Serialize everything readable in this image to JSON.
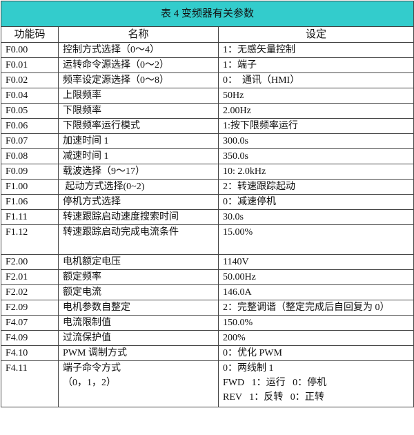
{
  "title": "表 4  变频器有关参数",
  "headers": [
    "功能码",
    "名称",
    "设定"
  ],
  "rows": [
    {
      "code": "F0.00",
      "name": "控制方式选择（0～4）",
      "setting": "1：无感矢量控制"
    },
    {
      "code": "F0.01",
      "name": "运转命令源选择（0～2）",
      "setting": "1：端子"
    },
    {
      "code": "F0.02",
      "name": "频率设定源选择（0～8）",
      "setting": "0：  通讯（HMI）"
    },
    {
      "code": "F0.04",
      "name": "上限频率",
      "setting": "50Hz"
    },
    {
      "code": "F0.05",
      "name": "下限频率",
      "setting": "2.00Hz"
    },
    {
      "code": "F0.06",
      "name": "下限频率运行模式",
      "setting": "1:按下限频率运行"
    },
    {
      "code": "F0.07",
      "name": "加速时间 1",
      "setting": "300.0s"
    },
    {
      "code": "F0.08",
      "name": "减速时间 1",
      "setting": "350.0s"
    },
    {
      "code": "F0.09",
      "name": "载波选择（9～17）",
      "setting": "10: 2.0kHz"
    },
    {
      "code": "F1.00",
      "name": " 起动方式选择(0~2)",
      "setting": "2：转速跟踪起动"
    },
    {
      "code": "F1.06",
      "name": "停机方式选择",
      "setting": "0：减速停机"
    },
    {
      "code": "F1.11",
      "name": "转速跟踪启动速度搜索时间",
      "setting": "30.0s"
    },
    {
      "code": "F1.12",
      "name": "转速跟踪启动完成电流条件",
      "setting": "15.00%"
    },
    {
      "code": "F2.00",
      "name": "电机额定电压",
      "setting": "1140V"
    },
    {
      "code": "F2.01",
      "name": "额定频率",
      "setting": "50.00Hz"
    },
    {
      "code": "F2.02",
      "name": "额定电流",
      "setting": "146.0A"
    },
    {
      "code": "F2.09",
      "name": "电机参数自整定",
      "setting": "2：完整调谐（整定完成后自回复为 0）"
    },
    {
      "code": "F4.07",
      "name": "电流限制值",
      "setting": "150.0%"
    },
    {
      "code": "F4.09",
      "name": "过流保护值",
      "setting": "200%"
    },
    {
      "code": "F4.10",
      "name": "PWM 调制方式",
      "setting": "0：优化 PWM"
    }
  ],
  "last_row": {
    "code": "F4.11",
    "name_lines": [
      "端子命令方式",
      "（0，1，2）"
    ],
    "setting_lines": [
      "0：两线制 1",
      "FWD   1：运行   0：停机",
      "REV   1：反转   0：正转"
    ]
  }
}
